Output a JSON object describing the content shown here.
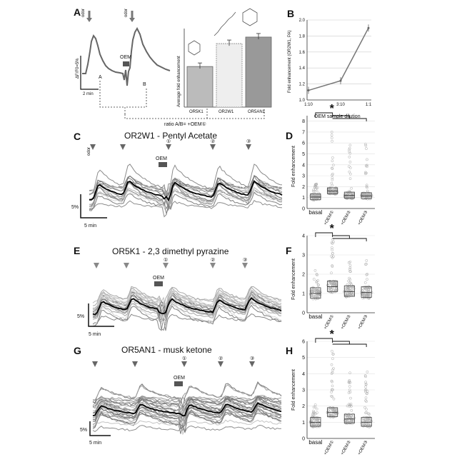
{
  "panels": {
    "A": {
      "label": "A",
      "odor1": "odor",
      "odor2": "odor",
      "dff": "ΔF/F0=5%",
      "scale": "2 min",
      "oem": "OEM",
      "markA": "A",
      "markB": "B",
      "ratio": "ratio A/B= +OEM①",
      "ylabel": "Average fold enhancement",
      "bars": [
        {
          "name": "OR5K1",
          "value": 1.62
        },
        {
          "name": "OR2W1",
          "value": 1.97
        },
        {
          "name": "OR5AN1",
          "value": 2.07
        }
      ]
    },
    "B": {
      "label": "B",
      "xlabel": "OEM sample dilution",
      "ylabel": "Fold enhancement (OR2W1, PA)",
      "xticks": [
        "1:10",
        "3:10",
        "1:1"
      ],
      "yticks": [
        "1.0",
        "1.2",
        "1.4",
        "1.6",
        "1.8",
        "2.0"
      ]
    },
    "C": {
      "label": "C",
      "title": "OR2W1 - Pentyl Acetate",
      "odor": "odor",
      "oem": "OEM",
      "scale_y": "5%",
      "scale_x": "5 min",
      "marks": [
        "①",
        "②",
        "③"
      ]
    },
    "D": {
      "label": "D",
      "ylabel": "Fold enhancement",
      "yticks": [
        "0",
        "1",
        "2",
        "3",
        "4",
        "5",
        "6",
        "7",
        "8"
      ],
      "cats": [
        "basal",
        "+OEM①",
        "+OEM②",
        "+OEM③"
      ],
      "star": "*"
    },
    "E": {
      "label": "E",
      "title": "OR5K1 - 2,3 dimethyl pyrazine",
      "oem": "OEM",
      "scale_y": "5%",
      "scale_x": "5 min",
      "marks": [
        "①",
        "②",
        "③"
      ]
    },
    "F": {
      "label": "F",
      "ylabel": "Fold enhancement",
      "yticks": [
        "0",
        "1",
        "2",
        "3",
        "4"
      ],
      "cats": [
        "basal",
        "+OEM①",
        "+OEM②",
        "+OEM③"
      ],
      "star": "*"
    },
    "G": {
      "label": "G",
      "title": "OR5AN1 - musk ketone",
      "oem": "OEM",
      "scale_y": "5%",
      "scale_x": "5 min",
      "marks": [
        "①",
        "②",
        "③"
      ]
    },
    "H": {
      "label": "H",
      "ylabel": "Fold enhancement",
      "yticks": [
        "0",
        "1",
        "2",
        "3",
        "4",
        "5",
        "6"
      ],
      "cats": [
        "basal",
        "+OEM①",
        "+OEM②",
        "+OEM③"
      ],
      "star": "*"
    }
  },
  "chart_data": [
    {
      "type": "bar",
      "categories": [
        "OR5K1",
        "OR2W1",
        "OR5AN1"
      ],
      "values": [
        1.62,
        1.97,
        2.07
      ],
      "title": "",
      "xlabel": "",
      "ylabel": "Average fold enhancement",
      "ylim": [
        1.0,
        2.2
      ]
    },
    {
      "type": "line",
      "x": [
        "1:10",
        "3:10",
        "1:1"
      ],
      "series": [
        {
          "values": [
            1.12,
            1.24,
            1.9
          ]
        }
      ],
      "title": "",
      "xlabel": "OEM sample dilution",
      "ylabel": "Fold enhancement (OR2W1, PA)",
      "ylim": [
        1.0,
        2.0
      ],
      "grid": true
    },
    {
      "type": "scatter",
      "categories": [
        "basal",
        "+OEM①",
        "+OEM②",
        "+OEM③"
      ],
      "medians": [
        1.05,
        1.6,
        1.2,
        1.15
      ],
      "ylabel": "Fold enhancement",
      "ylim": [
        0,
        8.5
      ],
      "title": ""
    },
    {
      "type": "scatter",
      "categories": [
        "basal",
        "+OEM①",
        "+OEM②",
        "+OEM③"
      ],
      "medians": [
        1.0,
        1.35,
        1.1,
        1.05
      ],
      "ylabel": "Fold enhancement",
      "ylim": [
        0,
        4
      ],
      "title": ""
    },
    {
      "type": "scatter",
      "categories": [
        "basal",
        "+OEM①",
        "+OEM②",
        "+OEM③"
      ],
      "medians": [
        1.0,
        1.6,
        1.2,
        1.0
      ],
      "ylabel": "Fold enhancement",
      "ylim": [
        0,
        6
      ],
      "title": ""
    }
  ]
}
